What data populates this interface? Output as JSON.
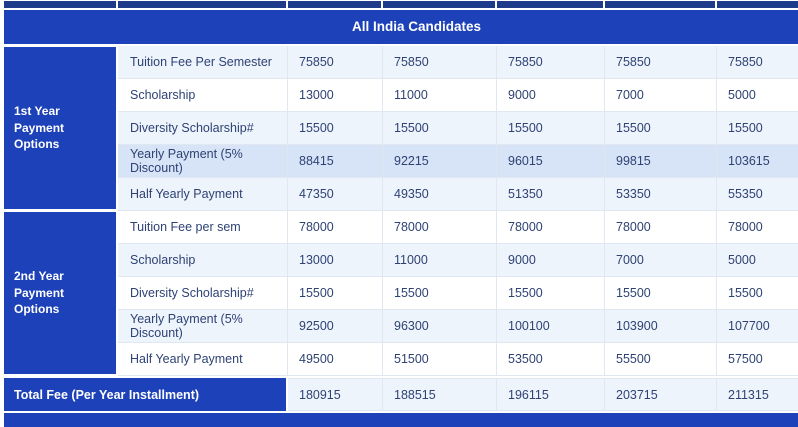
{
  "table": {
    "header_banner": "All India Candidates",
    "sections": [
      {
        "group_label": "1st Year Payment Options",
        "rows": [
          {
            "label": "Tuition Fee Per Semester",
            "values": [
              "75850",
              "75850",
              "75850",
              "75850",
              "75850"
            ]
          },
          {
            "label": "Scholarship",
            "values": [
              "13000",
              "11000",
              "9000",
              "7000",
              "5000"
            ]
          },
          {
            "label": "Diversity Scholarship#",
            "values": [
              "15500",
              "15500",
              "15500",
              "15500",
              "15500"
            ]
          },
          {
            "label": "Yearly Payment (5% Discount)",
            "values": [
              "88415",
              "92215",
              "96015",
              "99815",
              "103615"
            ],
            "highlighted": true
          },
          {
            "label": "Half Yearly Payment",
            "values": [
              "47350",
              "49350",
              "51350",
              "53350",
              "55350"
            ]
          }
        ]
      },
      {
        "group_label": "2nd Year Payment Options",
        "rows": [
          {
            "label": "Tuition Fee per sem",
            "values": [
              "78000",
              "78000",
              "78000",
              "78000",
              "78000"
            ]
          },
          {
            "label": "Scholarship",
            "values": [
              "13000",
              "11000",
              "9000",
              "7000",
              "5000"
            ]
          },
          {
            "label": "Diversity Scholarship#",
            "values": [
              "15500",
              "15500",
              "15500",
              "15500",
              "15500"
            ]
          },
          {
            "label": "Yearly Payment (5% Discount)",
            "values": [
              "92500",
              "96300",
              "100100",
              "103900",
              "107700"
            ]
          },
          {
            "label": "Half Yearly Payment",
            "values": [
              "49500",
              "51500",
              "53500",
              "55500",
              "57500"
            ]
          }
        ]
      }
    ],
    "total_row": {
      "label": "Total Fee (Per Year Installment)",
      "values": [
        "180915",
        "188515",
        "196115",
        "203715",
        "211315"
      ]
    },
    "colors": {
      "header_navy": "#1e3a8a",
      "primary_blue": "#1c41b8",
      "stripe_light": "#eef4fc",
      "row_highlight": "#d7e3f6",
      "cell_border": "#e1e7f0",
      "cell_text": "#2e4274"
    }
  }
}
